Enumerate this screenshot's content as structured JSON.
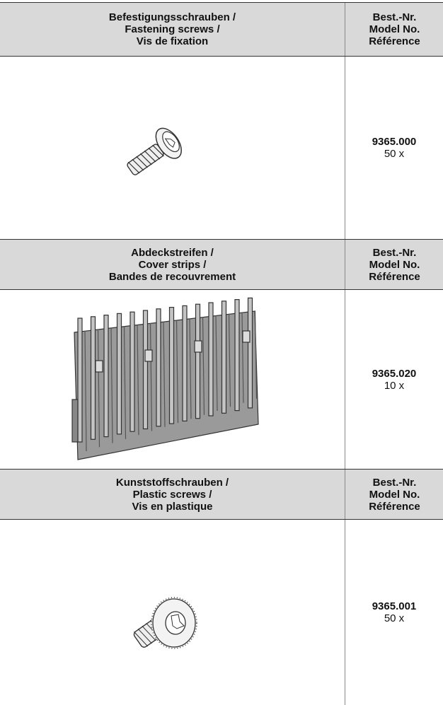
{
  "sections": [
    {
      "title_lines": [
        "Befestigungsschrauben /",
        "Fastening screws /",
        "Vis de fixation"
      ],
      "ref_header_lines": [
        "Best.-Nr.",
        "Model No.",
        "Référence"
      ],
      "model": "9365.000",
      "quantity": "50 x"
    },
    {
      "title_lines": [
        "Abdeckstreifen /",
        "Cover strips /",
        "Bandes de recouvrement"
      ],
      "ref_header_lines": [
        "Best.-Nr.",
        "Model No.",
        "Référence"
      ],
      "model": "9365.020",
      "quantity": "10 x"
    },
    {
      "title_lines": [
        "Kunststoffschrauben /",
        "Plastic screws /",
        "Vis en plastique"
      ],
      "ref_header_lines": [
        "Best.-Nr.",
        "Model No.",
        "Référence"
      ],
      "model": "9365.001",
      "quantity": "50 x"
    }
  ]
}
